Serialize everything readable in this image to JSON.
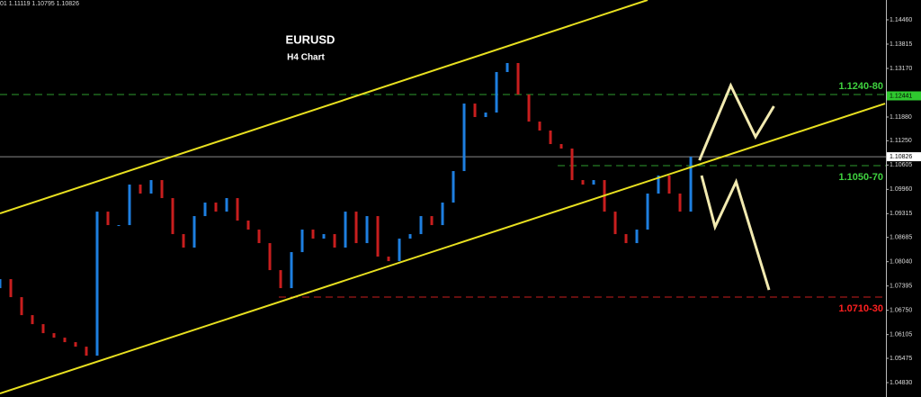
{
  "chart_data": {
    "type": "candlestick",
    "title": "EURUSD",
    "subtitle": "H4 Chart",
    "info_text": "01 1.11119 1.10795 1.10826",
    "up_color": "#1e7fe0",
    "down_color": "#c81e1e",
    "x": [
      0,
      1,
      2,
      3,
      4,
      5,
      6,
      7,
      8,
      9,
      10,
      11,
      12,
      13,
      14,
      15,
      16,
      17,
      18,
      19,
      20,
      21,
      22,
      23,
      24,
      25,
      26,
      27,
      28,
      29,
      30,
      31,
      32,
      33,
      34,
      35,
      36,
      37,
      38,
      39,
      40,
      41,
      42,
      43,
      44,
      45,
      46,
      47,
      48,
      49,
      50,
      51,
      52,
      53,
      54,
      55,
      56,
      57,
      58,
      59,
      60,
      61,
      62,
      63,
      64
    ],
    "open": [
      1.07338,
      1.07577,
      1.07099,
      1.06621,
      1.06382,
      1.06143,
      1.06023,
      1.05904,
      1.05784,
      1.05545,
      1.09369,
      1.09011,
      1.09011,
      1.10087,
      1.09848,
      1.10206,
      1.09728,
      1.08772,
      1.08414,
      1.0925,
      1.09609,
      1.09369,
      1.09728,
      1.09131,
      1.08892,
      1.08533,
      1.07816,
      1.07338,
      1.08294,
      1.08892,
      1.08652,
      1.08772,
      1.08414,
      1.09369,
      1.08533,
      1.0925,
      1.08175,
      1.08055,
      1.08652,
      1.08772,
      1.0925,
      1.09011,
      1.09609,
      1.10445,
      1.12237,
      1.11879,
      1.11999,
      1.13074,
      1.13313,
      1.12477,
      1.11759,
      1.11521,
      1.11162,
      1.11043,
      1.10206,
      1.10087,
      1.10206,
      1.09369,
      1.08772,
      1.08533,
      1.08892,
      1.09848,
      1.10326,
      1.09848,
      1.09369
    ],
    "close": [
      1.07577,
      1.07099,
      1.06621,
      1.06382,
      1.06143,
      1.06023,
      1.05904,
      1.05784,
      1.05545,
      1.09369,
      1.09011,
      1.09011,
      1.10087,
      1.09848,
      1.10206,
      1.09728,
      1.08772,
      1.08414,
      1.0925,
      1.09609,
      1.09369,
      1.09728,
      1.09131,
      1.08892,
      1.08533,
      1.07816,
      1.07338,
      1.08294,
      1.08892,
      1.08652,
      1.08772,
      1.08414,
      1.09369,
      1.08533,
      1.0925,
      1.08175,
      1.08055,
      1.08652,
      1.08772,
      1.0925,
      1.09011,
      1.09609,
      1.10445,
      1.12237,
      1.11879,
      1.11999,
      1.13074,
      1.13313,
      1.12477,
      1.11759,
      1.11521,
      1.11162,
      1.11043,
      1.10206,
      1.10087,
      1.10206,
      1.09369,
      1.08772,
      1.08533,
      1.08892,
      1.09848,
      1.10326,
      1.09848,
      1.09369,
      1.10826
    ],
    "xlim": [
      0,
      82.08
    ],
    "ylim": [
      1.04448,
      1.14986
    ],
    "yticks": [
      {
        "value": 1.1446,
        "label": "1.14460"
      },
      {
        "value": 1.13815,
        "label": "1.13815"
      },
      {
        "value": 1.1317,
        "label": "1.13170"
      },
      {
        "value": 1.1188,
        "label": "1.11880"
      },
      {
        "value": 1.1125,
        "label": "1.11250"
      },
      {
        "value": 1.10605,
        "label": "1.10605"
      },
      {
        "value": 1.0996,
        "label": "1.09960"
      },
      {
        "value": 1.09315,
        "label": "1.09315"
      },
      {
        "value": 1.08685,
        "label": "1.08685"
      },
      {
        "value": 1.0804,
        "label": "1.08040"
      },
      {
        "value": 1.07395,
        "label": "1.07395"
      },
      {
        "value": 1.0675,
        "label": "1.06750"
      },
      {
        "value": 1.06105,
        "label": "1.06105"
      },
      {
        "value": 1.05475,
        "label": "1.05475"
      },
      {
        "value": 1.0483,
        "label": "1.04830"
      }
    ],
    "price_labels": [
      {
        "value": 1.12441,
        "label": "1.12441",
        "color": "#2fc92f"
      },
      {
        "value": 1.10826,
        "label": "1.10826",
        "color": "#ffffff",
        "line_color": "#8a8a8a"
      }
    ],
    "levels": [
      {
        "value": 1.12477,
        "x_start": 0,
        "color": "#2e9b2e",
        "label": "1.1240-80"
      },
      {
        "value": 1.10588,
        "x_start": 51.67,
        "color": "#2e9b2e",
        "label": "1.1050-70"
      },
      {
        "value": 1.07099,
        "x_start": 25.83,
        "color": "#c81e1e",
        "label": "1.0710-30"
      }
    ],
    "trendlines": [
      {
        "x": [
          0,
          60
        ],
        "y": [
          1.09322,
          1.14986
        ],
        "color": "#e8e020"
      },
      {
        "x": [
          0,
          82
        ],
        "y": [
          1.04542,
          1.12237
        ],
        "color": "#e8e020"
      }
    ],
    "projections": [
      {
        "x": [
          64.8,
          67.7,
          70,
          71.7
        ],
        "y": [
          1.10732,
          1.12716,
          1.11354,
          1.12166
        ],
        "color": "#f2eab0"
      },
      {
        "x": [
          65,
          66.25,
          68.2,
          71.25
        ],
        "y": [
          1.10326,
          1.08963,
          1.10158,
          1.0729
        ],
        "color": "#f2eab0"
      }
    ]
  }
}
